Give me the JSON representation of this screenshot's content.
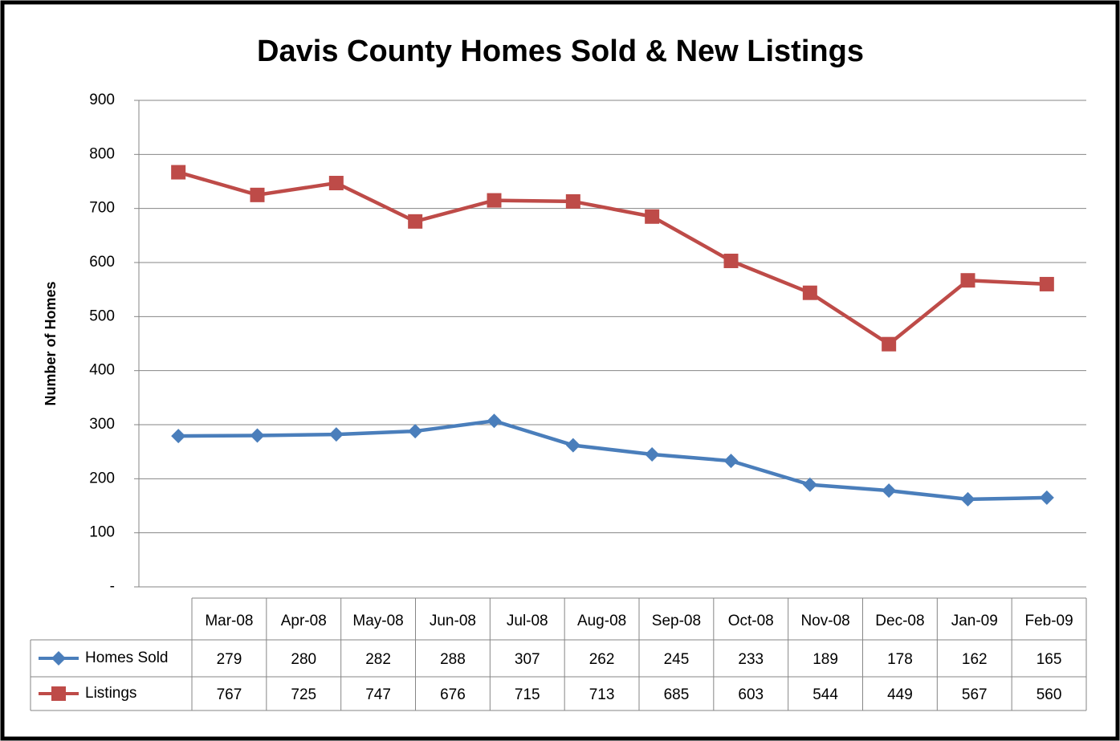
{
  "chart_data": {
    "type": "line",
    "title": "Davis County Homes Sold & New Listings",
    "y_label": "Number of Homes",
    "categories": [
      "Mar-08",
      "Apr-08",
      "May-08",
      "Jun-08",
      "Jul-08",
      "Aug-08",
      "Sep-08",
      "Oct-08",
      "Nov-08",
      "Dec-08",
      "Jan-09",
      "Feb-09"
    ],
    "series": [
      {
        "name": "Homes Sold",
        "color": "#4a7ebb",
        "marker": "diamond",
        "values": [
          279,
          280,
          282,
          288,
          307,
          262,
          245,
          233,
          189,
          178,
          162,
          165
        ]
      },
      {
        "name": "Listings",
        "color": "#be4b48",
        "marker": "square",
        "values": [
          767,
          725,
          747,
          676,
          715,
          713,
          685,
          603,
          544,
          449,
          567,
          560
        ]
      }
    ],
    "ylim": [
      0,
      900
    ],
    "yticks": [
      {
        "value": 0,
        "label": "-"
      },
      100,
      200,
      300,
      400,
      500,
      600,
      700,
      800,
      900
    ],
    "grid": true
  }
}
